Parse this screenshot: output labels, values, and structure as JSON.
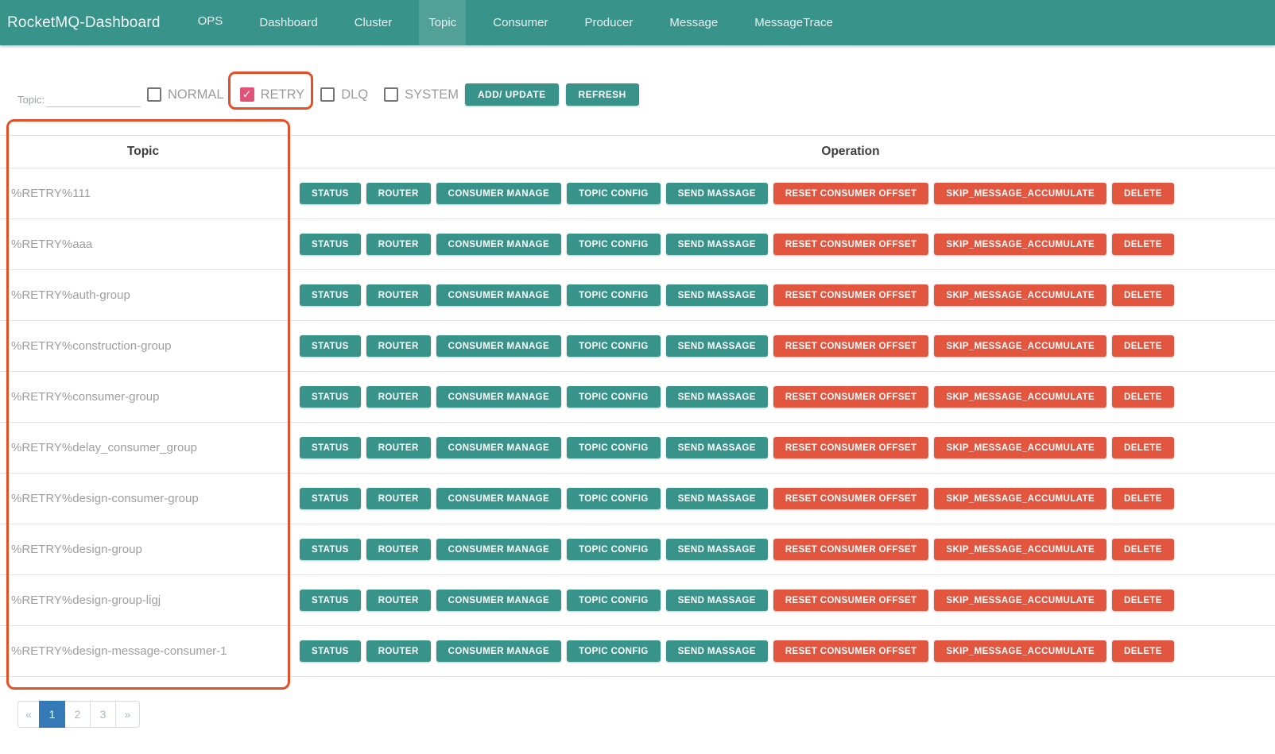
{
  "navbar": {
    "brand": "RocketMQ-Dashboard",
    "items": [
      {
        "label": "OPS",
        "active": false
      },
      {
        "label": "Dashboard",
        "active": false
      },
      {
        "label": "Cluster",
        "active": false
      },
      {
        "label": "Topic",
        "active": true
      },
      {
        "label": "Consumer",
        "active": false
      },
      {
        "label": "Producer",
        "active": false
      },
      {
        "label": "Message",
        "active": false
      },
      {
        "label": "MessageTrace",
        "active": false
      }
    ]
  },
  "filter": {
    "topic_label": "Topic:",
    "topic_value": "",
    "checkboxes": [
      {
        "label": "NORMAL",
        "checked": false,
        "annotated": false
      },
      {
        "label": "RETRY",
        "checked": true,
        "annotated": true
      },
      {
        "label": "DLQ",
        "checked": false,
        "annotated": false
      },
      {
        "label": "SYSTEM",
        "checked": false,
        "annotated": false
      }
    ],
    "checkmark_glyph": "✓",
    "add_update_label": "ADD/ UPDATE",
    "refresh_label": "REFRESH"
  },
  "table": {
    "columns": [
      "Topic",
      "Operation"
    ],
    "row_actions": [
      {
        "label": "STATUS",
        "variant": "teal"
      },
      {
        "label": "ROUTER",
        "variant": "teal"
      },
      {
        "label": "CONSUMER MANAGE",
        "variant": "teal"
      },
      {
        "label": "TOPIC CONFIG",
        "variant": "teal"
      },
      {
        "label": "SEND MASSAGE",
        "variant": "teal"
      },
      {
        "label": "RESET CONSUMER OFFSET",
        "variant": "red"
      },
      {
        "label": "SKIP_MESSAGE_ACCUMULATE",
        "variant": "red"
      },
      {
        "label": "DELETE",
        "variant": "red"
      }
    ],
    "rows": [
      "%RETRY%111",
      "%RETRY%aaa",
      "%RETRY%auth-group",
      "%RETRY%construction-group",
      "%RETRY%consumer-group",
      "%RETRY%delay_consumer_group",
      "%RETRY%design-consumer-group",
      "%RETRY%design-group",
      "%RETRY%design-group-ligj",
      "%RETRY%design-message-consumer-1"
    ]
  },
  "pagination": {
    "items": [
      {
        "label": "«",
        "active": false
      },
      {
        "label": "1",
        "active": true
      },
      {
        "label": "2",
        "active": false
      },
      {
        "label": "3",
        "active": false
      },
      {
        "label": "»",
        "active": false
      }
    ]
  },
  "colors": {
    "navbar_teal": "#38948a",
    "active_tab_overlay": "rgba(255,255,255,0.13)",
    "button_teal": "#38948a",
    "button_red": "#e2553f",
    "annotation_red": "#e64f26",
    "checkbox_checked_pink": "#e0547a",
    "pagination_active_blue": "#337ab7",
    "topic_text_gray": "#9e9e9e"
  }
}
